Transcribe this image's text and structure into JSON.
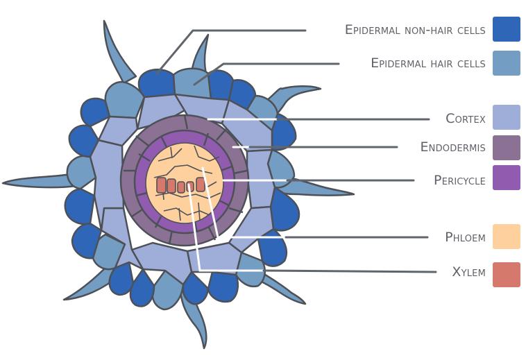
{
  "legend": [
    {
      "key": "epidermal_non_hair",
      "label": "Epidermal non-hair cells",
      "color": "#2f66b8"
    },
    {
      "key": "epidermal_hair",
      "label": "Epidermal hair cells",
      "color": "#749dc3"
    },
    {
      "key": "cortex",
      "label": "Cortex",
      "color": "#9fadd9"
    },
    {
      "key": "endodermis",
      "label": "Endodermis",
      "color": "#8b7295"
    },
    {
      "key": "pericycle",
      "label": "Pericycle",
      "color": "#915bb0"
    },
    {
      "key": "phloem",
      "label": "Phloem",
      "color": "#fdd09e"
    },
    {
      "key": "xylem",
      "label": "Xylem",
      "color": "#d4796b"
    }
  ],
  "outline_color": "#4d5157",
  "leader_color": "#5f656c"
}
